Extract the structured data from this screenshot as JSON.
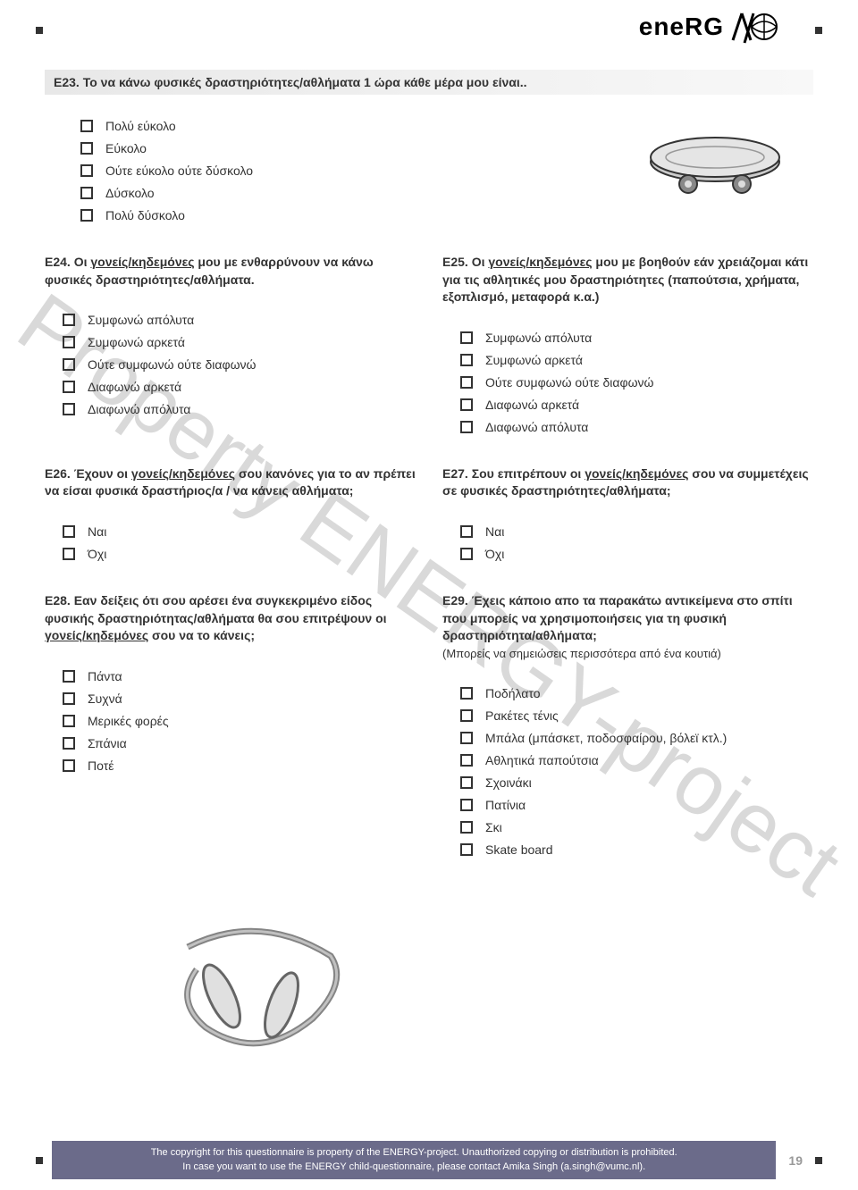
{
  "logo_text": "eneRG",
  "watermark": "Property ENERGY-project",
  "q23": {
    "num": "E23.",
    "text": "Το να κάνω φυσικές δραστηριότητες/αθλήματα 1 ώρα κάθε μέρα μου είναι..",
    "opts": [
      "Πολύ εύκολο",
      "Εύκολο",
      "Ούτε εύκολο ούτε δύσκολο",
      "Δύσκολο",
      "Πολύ δύσκολο"
    ]
  },
  "q24": {
    "num": "E24.",
    "text_a": "Οι ",
    "text_u": "γονείς/κηδεμόνες",
    "text_b": " μου με ενθαρρύνουν να κάνω φυσικές δραστηριότητες/αθλήματα.",
    "opts": [
      "Συμφωνώ απόλυτα",
      "Συμφωνώ αρκετά",
      "Ούτε συμφωνώ ούτε διαφωνώ",
      "Διαφωνώ αρκετά",
      "Διαφωνώ απόλυτα"
    ]
  },
  "q25": {
    "num": "E25.",
    "text_a": "Οι ",
    "text_u": "γονείς/κηδεμόνες",
    "text_b": " μου με βοηθούν εάν χρειάζομαι κάτι για τις αθλητικές μου δραστηριότητες (παπούτσια, χρήματα, εξοπλισμό, μεταφορά κ.α.)",
    "opts": [
      "Συμφωνώ απόλυτα",
      "Συμφωνώ αρκετά",
      "Ούτε συμφωνώ ούτε διαφωνώ",
      "Διαφωνώ αρκετά",
      "Διαφωνώ απόλυτα"
    ]
  },
  "q26": {
    "num": "E26.",
    "text_a": "Έχουν οι ",
    "text_u": "γονείς/κηδεμόνες",
    "text_b": " σου κανόνες για το αν πρέπει να είσαι φυσικά δραστήριος/α / να κάνεις αθλήματα;",
    "opts": [
      "Ναι",
      "Όχι"
    ]
  },
  "q27": {
    "num": "E27.",
    "text_a": "Σου επιτρέπουν οι ",
    "text_u": "γονείς/κηδεμόνες",
    "text_b": " σου να συμμετέχεις σε φυσικές δραστηριότητες/αθλήματα;",
    "opts": [
      "Ναι",
      "Όχι"
    ]
  },
  "q28": {
    "num": "E28.",
    "text_a": "Εαν δείξεις ότι σου αρέσει ένα συγκεκριμένο είδος φυσικής δραστηριότητας/αθλήματα θα σου επιτρέψουν οι ",
    "text_u": "γονείς/κηδεμόνες",
    "text_b": " σου να το κάνεις;",
    "opts": [
      "Πάντα",
      "Συχνά",
      "Μερικές φορές",
      "Σπάνια",
      "Ποτέ"
    ]
  },
  "q29": {
    "num": "E29.",
    "text": "Έχεις κάποιο απο τα παρακάτω αντικείμενα στο σπίτι που μπορείς να χρησιμοποιήσεις για τη φυσική δραστηριότητα/αθλήματα;",
    "sub": "(Μπορείς να σημειώσεις περισσότερα από ένα κουτιά)",
    "opts": [
      "Ποδήλατο",
      "Ρακέτες τένις",
      "Μπάλα (μπάσκετ, ποδοσφαίρου, βόλεϊ κτλ.)",
      "Αθλητικά παπούτσια",
      "Σχοινάκι",
      "Πατίνια",
      "Σκι",
      "Skate board"
    ]
  },
  "footer": {
    "line1": "The copyright for this questionnaire is property of the ENERGY-project. Unauthorized copying or distribution is prohibited.",
    "line2": "In case you want to use the ENERGY child-questionnaire, please contact Amika Singh (a.singh@vumc.nl).",
    "page": "19"
  }
}
